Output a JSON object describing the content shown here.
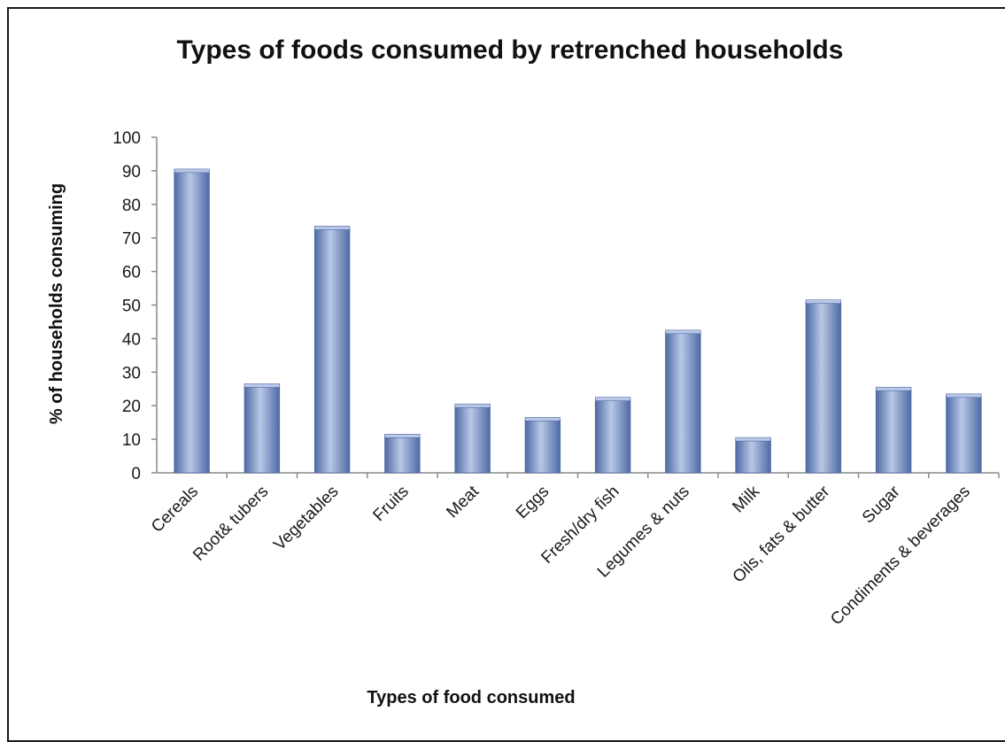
{
  "chart_data": {
    "type": "bar",
    "title": "Types of foods consumed by retrenched households",
    "xlabel": "Types of food consumed",
    "ylabel": "% of households consuming",
    "ylim": [
      0,
      100
    ],
    "yticks": [
      0,
      10,
      20,
      30,
      40,
      50,
      60,
      70,
      80,
      90,
      100
    ],
    "grid": false,
    "legend": "none",
    "categories": [
      "Cereals",
      "Root& tubers",
      "Vegetables",
      "Fruits",
      "Meat",
      "Eggs",
      "Fresh/dry fish",
      "Legumes & nuts",
      "Milk",
      "Oils, fats & butter",
      "Sugar",
      "Condiments & beverages"
    ],
    "values": [
      90,
      26,
      73,
      11,
      20,
      16,
      22,
      42,
      10,
      51,
      25,
      23
    ],
    "colors": {
      "bar_light": "#b8c8e6",
      "bar_mid": "#7f9bd0",
      "bar_dark": "#4f6aa5",
      "axis": "#8a8a8a"
    }
  }
}
